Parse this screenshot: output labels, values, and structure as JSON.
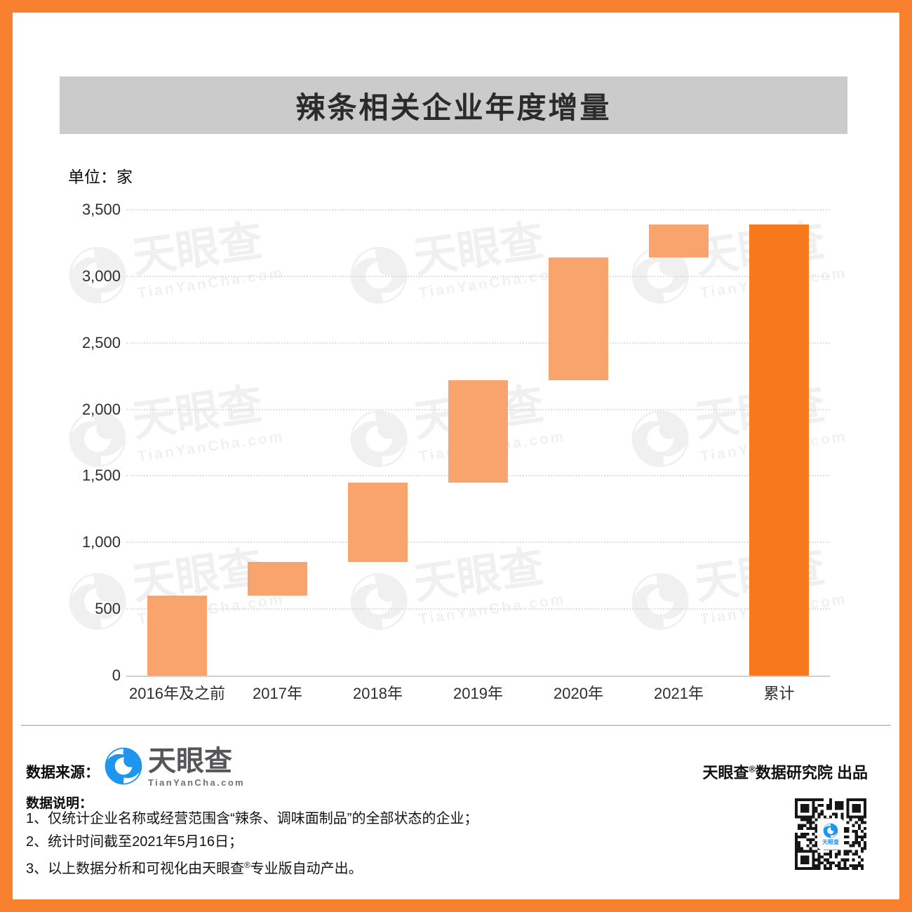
{
  "header": {
    "title": "辣条相关企业年度增量"
  },
  "chart": {
    "unit_label": "单位：家"
  },
  "chart_data": {
    "type": "bar",
    "subtype": "waterfall",
    "title": "辣条相关企业年度增量",
    "unit": "家",
    "categories": [
      "2016年及之前",
      "2017年",
      "2018年",
      "2019年",
      "2020年",
      "2021年",
      "累计"
    ],
    "series": [
      {
        "name": "年度增量",
        "values": [
          600,
          255,
          595,
          770,
          920,
          250,
          3390
        ]
      }
    ],
    "cumulative": [
      600,
      855,
      1450,
      2220,
      3140,
      3390,
      3390
    ],
    "segments": [
      {
        "category": "2016年及之前",
        "start": 0,
        "end": 600,
        "kind": "increment"
      },
      {
        "category": "2017年",
        "start": 600,
        "end": 855,
        "kind": "increment"
      },
      {
        "category": "2018年",
        "start": 855,
        "end": 1450,
        "kind": "increment"
      },
      {
        "category": "2019年",
        "start": 1450,
        "end": 2220,
        "kind": "increment"
      },
      {
        "category": "2020年",
        "start": 2220,
        "end": 3140,
        "kind": "increment"
      },
      {
        "category": "2021年",
        "start": 3140,
        "end": 3390,
        "kind": "increment"
      },
      {
        "category": "累计",
        "start": 0,
        "end": 3390,
        "kind": "total"
      }
    ],
    "ylim": [
      0,
      3500
    ],
    "yticks": [
      0,
      500,
      1000,
      1500,
      2000,
      2500,
      3000,
      3500
    ],
    "ytick_labels": [
      "0",
      "500",
      "1,000",
      "1,500",
      "2,000",
      "2,500",
      "3,000",
      "3,500"
    ],
    "grid": "horizontal-dotted",
    "legend": "none"
  },
  "watermark": {
    "brand": "天眼查",
    "domain": "TianYanCha.com"
  },
  "footer": {
    "source_label": "数据来源：",
    "logo": {
      "brand": "天眼查",
      "domain": "TianYanCha.com"
    },
    "produced_by": {
      "pre": "天眼查",
      "sup": "®",
      "post": "数据研究院 出品"
    },
    "notes_label": "数据说明：",
    "notes": [
      {
        "pre": "1、仅统计企业名称或经营范围含“辣条、调味面制品”的全部状态的企业；",
        "sup": "",
        "post": ""
      },
      {
        "pre": "2、统计时间截至2021年5月16日；",
        "sup": "",
        "post": ""
      },
      {
        "pre": "3、以上数据分析和可视化由天眼查",
        "sup": "®",
        "post": "专业版自动产出。"
      }
    ]
  },
  "theme": {
    "accent_orange": "#f8802e",
    "bar_light": "#faa46d",
    "bar_dark": "#f8791c",
    "band_gray": "#cbcbcb",
    "logo_blue": "#1e96f0",
    "qr_dark": "#161616"
  }
}
